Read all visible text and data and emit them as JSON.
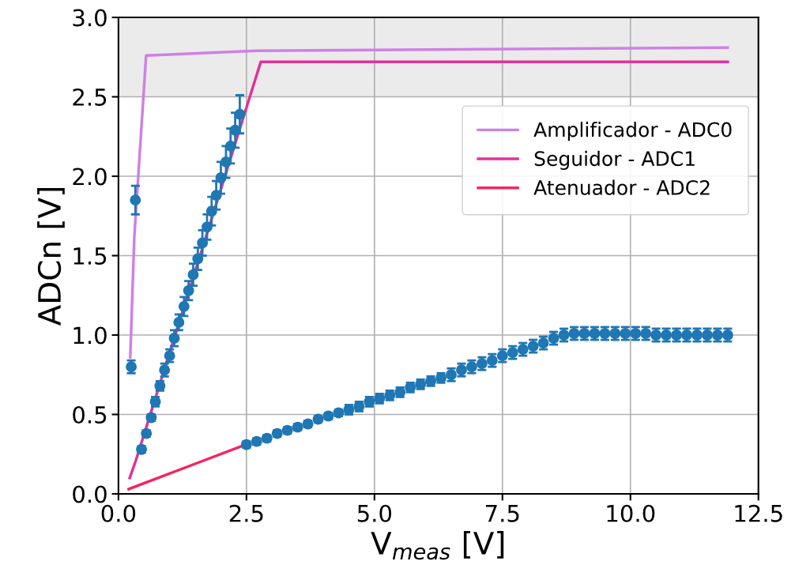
{
  "chart_data": {
    "type": "line",
    "xlabel": "V$_{meas}$ [V]",
    "ylabel": "ADCn [V]",
    "xlim": [
      0,
      12.5
    ],
    "xticks": [
      {
        "value": 0,
        "label": "0.0"
      },
      2.5,
      {
        "value": 5,
        "label": "5.0"
      },
      7.5,
      {
        "value": 10,
        "label": "10.0"
      },
      12.5
    ],
    "ylim": [
      0,
      3
    ],
    "yticks": [
      {
        "value": 0,
        "label": "0.0"
      },
      0.5,
      {
        "value": 1,
        "label": "1.0"
      },
      1.5,
      {
        "value": 2,
        "label": "2.0"
      },
      2.5,
      {
        "value": 3,
        "label": "3.0"
      }
    ],
    "grid": true,
    "legend": "right",
    "marker": "none",
    "line_style": "solid",
    "bands": [
      {
        "axis": "y",
        "from": 2.5,
        "to": 3.0,
        "color": "#ebebeb"
      }
    ],
    "series": [
      {
        "name": "Amplificador - ADC0",
        "color": "#cf80e6",
        "x": [
          0.23,
          0.31,
          0.54,
          2.7,
          11.9
        ],
        "values": [
          0.86,
          1.62,
          2.76,
          2.79,
          2.81
        ]
      },
      {
        "name": "Seguidor - ADC1",
        "color": "#e2319a",
        "x": [
          0.22,
          0.34,
          2.78,
          11.9
        ],
        "values": [
          0.1,
          0.21,
          2.72,
          2.72
        ]
      },
      {
        "name": "Atenuador - ADC2",
        "color": "#f2275f",
        "x": [
          0.2,
          2.4
        ],
        "values": [
          0.03,
          0.3
        ]
      },
      {
        "type": "scatter",
        "marker": "circle",
        "color": "#1f77b4",
        "x": [
          0.25,
          0.33,
          0.45,
          0.545,
          0.64,
          0.72,
          0.81,
          0.9,
          1.0,
          1.09,
          1.18,
          1.28,
          1.37,
          1.46,
          1.55,
          1.64,
          1.73,
          1.82,
          1.91,
          2.0,
          2.1,
          2.19,
          2.28,
          2.37,
          2.5,
          2.7,
          2.9,
          3.1,
          3.3,
          3.5,
          3.7,
          3.9,
          4.1,
          4.3,
          4.5,
          4.7,
          4.9,
          5.1,
          5.3,
          5.5,
          5.7,
          5.9,
          6.1,
          6.3,
          6.5,
          6.7,
          6.9,
          7.1,
          7.3,
          7.5,
          7.7,
          7.9,
          8.1,
          8.3,
          8.5,
          8.7,
          8.9,
          9.1,
          9.3,
          9.5,
          9.7,
          9.9,
          10.1,
          10.3,
          10.5,
          10.7,
          10.9,
          11.1,
          11.3,
          11.5,
          11.7,
          11.9
        ],
        "values": [
          0.8,
          1.85,
          0.28,
          0.38,
          0.48,
          0.58,
          0.68,
          0.78,
          0.87,
          0.98,
          1.08,
          1.18,
          1.28,
          1.38,
          1.48,
          1.58,
          1.68,
          1.78,
          1.88,
          1.99,
          2.09,
          2.19,
          2.29,
          2.39,
          0.31,
          0.33,
          0.35,
          0.38,
          0.4,
          0.42,
          0.44,
          0.47,
          0.49,
          0.51,
          0.53,
          0.55,
          0.58,
          0.6,
          0.62,
          0.64,
          0.67,
          0.69,
          0.71,
          0.73,
          0.75,
          0.78,
          0.8,
          0.82,
          0.84,
          0.87,
          0.89,
          0.91,
          0.93,
          0.95,
          0.98,
          1.0,
          1.01,
          1.01,
          1.01,
          1.01,
          1.01,
          1.01,
          1.01,
          1.01,
          1.0,
          1.0,
          1.0,
          1.0,
          1.0,
          1.0,
          1.0,
          1.0
        ],
        "errors": [
          0.04,
          0.09,
          0.02,
          0.02,
          0.02,
          0.03,
          0.03,
          0.04,
          0.04,
          0.05,
          0.05,
          0.06,
          0.06,
          0.07,
          0.07,
          0.08,
          0.08,
          0.09,
          0.09,
          0.1,
          0.1,
          0.11,
          0.11,
          0.12,
          0.02,
          0.02,
          0.02,
          0.02,
          0.02,
          0.02,
          0.02,
          0.02,
          0.02,
          0.02,
          0.03,
          0.03,
          0.03,
          0.03,
          0.03,
          0.03,
          0.03,
          0.03,
          0.03,
          0.03,
          0.04,
          0.04,
          0.04,
          0.04,
          0.04,
          0.04,
          0.04,
          0.04,
          0.04,
          0.04,
          0.04,
          0.04,
          0.04,
          0.04,
          0.04,
          0.04,
          0.04,
          0.04,
          0.04,
          0.04,
          0.04,
          0.04,
          0.04,
          0.04,
          0.04,
          0.04,
          0.04,
          0.04
        ]
      }
    ]
  }
}
